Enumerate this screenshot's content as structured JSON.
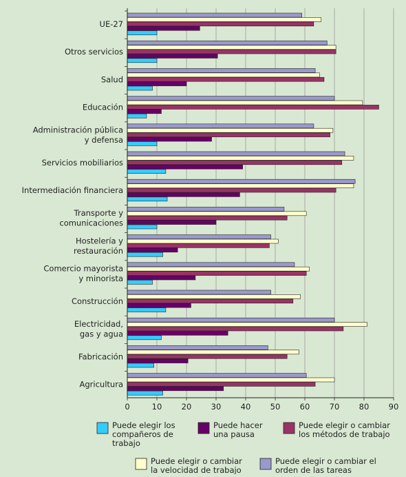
{
  "chart_data": {
    "type": "bar",
    "orientation": "horizontal",
    "xlim": [
      0,
      90
    ],
    "xticks": [
      0,
      10,
      20,
      30,
      40,
      50,
      60,
      70,
      80,
      90
    ],
    "grid": "vertical",
    "legend_position": "bottom",
    "categories": [
      [
        "UE-27"
      ],
      [
        "Otros servicios"
      ],
      [
        "Salud"
      ],
      [
        "Educación"
      ],
      [
        "Administración pública",
        "y defensa"
      ],
      [
        "Servicios mobiliarios"
      ],
      [
        "Intermediación financiera"
      ],
      [
        "Transporte y",
        "comunicaciones"
      ],
      [
        "Hostelería y",
        "restauración"
      ],
      [
        "Comercio mayorista",
        "y minorista"
      ],
      [
        "Construcción"
      ],
      [
        "Electricidad,",
        "gas y agua"
      ],
      [
        "Fabricación"
      ],
      [
        "Agricultura"
      ]
    ],
    "series": [
      {
        "name": [
          "Puede elegir o cambiar el",
          "orden de las tareas"
        ],
        "color": "#9999cc",
        "values": [
          59,
          67.5,
          63.5,
          70,
          63,
          73.5,
          77,
          53,
          48.5,
          56.5,
          48.5,
          70,
          47.5,
          60.5
        ]
      },
      {
        "name": [
          "Puede elegir o cambiar",
          "la velocidad de trabajo"
        ],
        "color": "#ffffcc",
        "values": [
          65.5,
          70.5,
          65,
          79.5,
          69.5,
          76.5,
          76.5,
          60.5,
          51,
          61.5,
          58.5,
          81,
          58,
          70
        ]
      },
      {
        "name": [
          "Puede elegir o cambiar",
          "los métodos de trabajo"
        ],
        "color": "#993366",
        "values": [
          63,
          70.5,
          66.5,
          85,
          68.5,
          72.5,
          70.5,
          54,
          48,
          60.5,
          56,
          73,
          54,
          63.5
        ]
      },
      {
        "name": [
          "Puede hacer",
          "una pausa"
        ],
        "color": "#660066",
        "values": [
          24.5,
          30.5,
          20,
          11.5,
          28.5,
          39,
          38,
          30,
          17,
          23,
          21.5,
          34,
          20.5,
          32.5
        ]
      },
      {
        "name": [
          "Puede elegir los",
          "compañeros de",
          "trabajo"
        ],
        "color": "#33ccff",
        "values": [
          10,
          10,
          8.5,
          6.5,
          10,
          13,
          13.5,
          10,
          12,
          8.5,
          13,
          11.5,
          9,
          12
        ]
      }
    ],
    "legend_order": [
      4,
      3,
      2,
      1,
      0
    ]
  }
}
